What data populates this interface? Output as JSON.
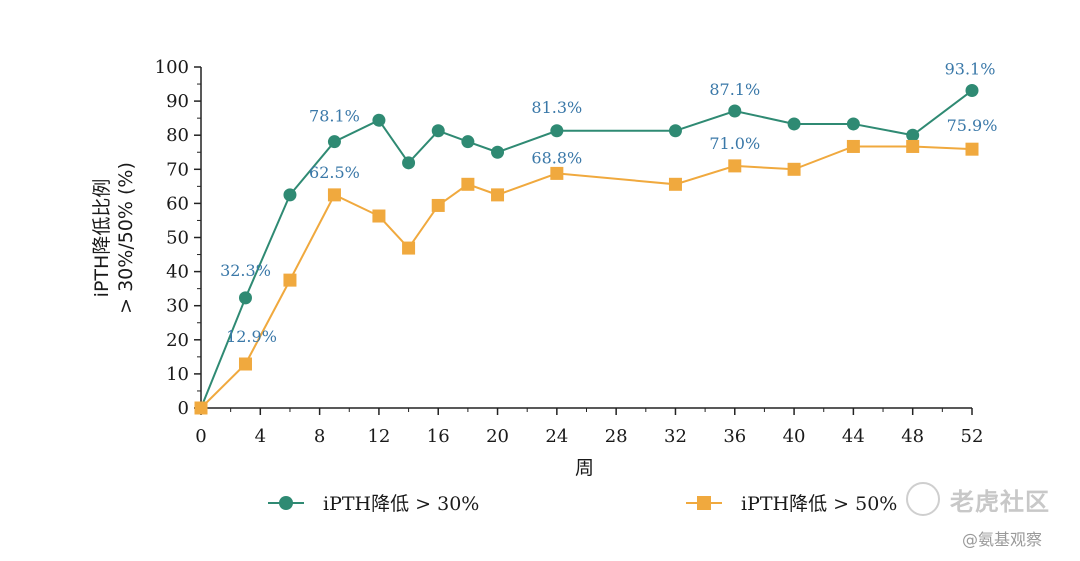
{
  "chart_data": {
    "type": "line",
    "title": "",
    "xlabel": "周",
    "ylabel_line1": "iPTH降低比例",
    "ylabel_line2": "> 30%/50% (%)",
    "xlim": [
      0,
      52
    ],
    "ylim": [
      0,
      100
    ],
    "x_ticks": [
      0,
      4,
      8,
      12,
      16,
      20,
      24,
      28,
      32,
      36,
      40,
      44,
      48,
      52
    ],
    "y_ticks": [
      0,
      10,
      20,
      30,
      40,
      50,
      60,
      70,
      80,
      90,
      100
    ],
    "grid": false,
    "legend_position": "bottom",
    "series": [
      {
        "name": "iPTH降低 > 30%",
        "color": "#2f8a73",
        "marker": "circle",
        "x": [
          0,
          3,
          6,
          9,
          12,
          14,
          16,
          18,
          20,
          24,
          32,
          36,
          40,
          44,
          48,
          52
        ],
        "y": [
          0,
          32.3,
          62.5,
          78.1,
          84.4,
          71.9,
          81.3,
          78.1,
          75.0,
          81.3,
          81.3,
          87.1,
          83.3,
          83.3,
          80.0,
          93.1
        ],
        "labels": [
          {
            "x": 3,
            "text": "32.3%"
          },
          {
            "x": 9,
            "text": "78.1%"
          },
          {
            "x": 24,
            "text": "81.3%"
          },
          {
            "x": 36,
            "text": "87.1%"
          },
          {
            "x": 52,
            "text": "93.1%"
          }
        ]
      },
      {
        "name": "iPTH降低 > 50%",
        "color": "#f0a93e",
        "marker": "square",
        "x": [
          0,
          3,
          6,
          9,
          12,
          14,
          16,
          18,
          20,
          24,
          32,
          36,
          40,
          44,
          48,
          52
        ],
        "y": [
          0,
          12.9,
          37.5,
          62.5,
          56.3,
          46.9,
          59.4,
          65.6,
          62.5,
          68.8,
          65.6,
          71.0,
          70.0,
          76.7,
          76.7,
          75.9
        ],
        "labels": [
          {
            "x": 3,
            "text": "12.9%"
          },
          {
            "x": 9,
            "text": "62.5%"
          },
          {
            "x": 24,
            "text": "68.8%"
          },
          {
            "x": 36,
            "text": "71.0%"
          },
          {
            "x": 52,
            "text": "75.9%"
          }
        ]
      }
    ]
  },
  "watermark": {
    "brand": "老虎社区",
    "handle": "@氨基观察"
  }
}
